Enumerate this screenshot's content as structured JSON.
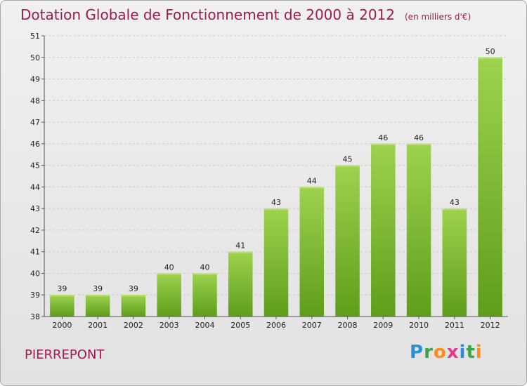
{
  "title": "Dotation Globale de Fonctionnement de 2000 à 2012",
  "subtitle": "(en milliers d'€)",
  "commune": "PIERREPONT",
  "brand": "Proxiti",
  "colors": {
    "title": "#a01a4c",
    "bar_top": "#9ed24e",
    "bar_bottom": "#5e9e1a"
  },
  "chart_data": {
    "type": "bar",
    "categories": [
      "2000",
      "2001",
      "2002",
      "2003",
      "2004",
      "2005",
      "2006",
      "2007",
      "2008",
      "2009",
      "2010",
      "2011",
      "2012"
    ],
    "values": [
      39,
      39,
      39,
      40,
      40,
      41,
      43,
      44,
      45,
      46,
      46,
      43,
      50
    ],
    "data_labels": [
      "39",
      "39",
      "39",
      "40",
      "40",
      "41",
      "43",
      "44",
      "45",
      "46",
      "46",
      "43",
      "50"
    ],
    "ylim": [
      38,
      51
    ],
    "yticks": [
      "38",
      "39",
      "40",
      "41",
      "42",
      "43",
      "44",
      "45",
      "46",
      "47",
      "48",
      "49",
      "50",
      "51"
    ],
    "grid": true
  }
}
